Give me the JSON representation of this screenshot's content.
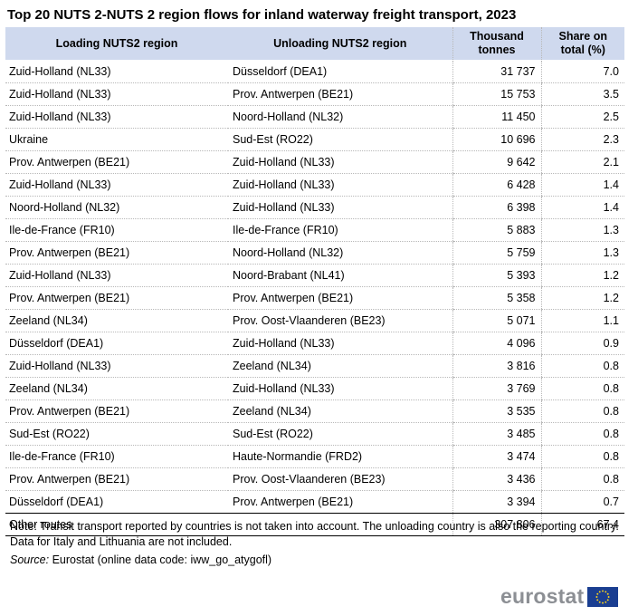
{
  "title": "Top 20 NUTS 2-NUTS 2 region flows for inland waterway freight transport, 2023",
  "table": {
    "headers": {
      "loading": "Loading NUTS2 region",
      "unloading": "Unloading NUTS2 region",
      "tonnes_line1": "Thousand",
      "tonnes_line2": "tonnes",
      "share_line1": "Share on",
      "share_line2": "total (%)"
    },
    "rows": [
      {
        "loading": "Zuid-Holland (NL33)",
        "unloading": "Düsseldorf (DEA1)",
        "tonnes": "31 737",
        "share": "7.0"
      },
      {
        "loading": "Zuid-Holland (NL33)",
        "unloading": "Prov. Antwerpen (BE21)",
        "tonnes": "15 753",
        "share": "3.5"
      },
      {
        "loading": "Zuid-Holland (NL33)",
        "unloading": "Noord-Holland (NL32)",
        "tonnes": "11 450",
        "share": "2.5"
      },
      {
        "loading": "Ukraine",
        "unloading": "Sud-Est (RO22)",
        "tonnes": "10 696",
        "share": "2.3"
      },
      {
        "loading": "Prov. Antwerpen (BE21)",
        "unloading": "Zuid-Holland (NL33)",
        "tonnes": "9 642",
        "share": "2.1"
      },
      {
        "loading": "Zuid-Holland (NL33)",
        "unloading": "Zuid-Holland (NL33)",
        "tonnes": "6 428",
        "share": "1.4"
      },
      {
        "loading": "Noord-Holland (NL32)",
        "unloading": "Zuid-Holland (NL33)",
        "tonnes": "6 398",
        "share": "1.4"
      },
      {
        "loading": "Ile-de-France (FR10)",
        "unloading": "Ile-de-France (FR10)",
        "tonnes": "5 883",
        "share": "1.3"
      },
      {
        "loading": "Prov. Antwerpen (BE21)",
        "unloading": "Noord-Holland (NL32)",
        "tonnes": "5 759",
        "share": "1.3"
      },
      {
        "loading": "Zuid-Holland (NL33)",
        "unloading": "Noord-Brabant (NL41)",
        "tonnes": "5 393",
        "share": "1.2"
      },
      {
        "loading": "Prov. Antwerpen (BE21)",
        "unloading": "Prov. Antwerpen (BE21)",
        "tonnes": "5 358",
        "share": "1.2"
      },
      {
        "loading": "Zeeland (NL34)",
        "unloading": "Prov. Oost-Vlaanderen (BE23)",
        "tonnes": "5 071",
        "share": "1.1"
      },
      {
        "loading": "Düsseldorf (DEA1)",
        "unloading": "Zuid-Holland (NL33)",
        "tonnes": "4 096",
        "share": "0.9"
      },
      {
        "loading": "Zuid-Holland (NL33)",
        "unloading": "Zeeland (NL34)",
        "tonnes": "3 816",
        "share": "0.8"
      },
      {
        "loading": "Zeeland (NL34)",
        "unloading": "Zuid-Holland (NL33)",
        "tonnes": "3 769",
        "share": "0.8"
      },
      {
        "loading": "Prov. Antwerpen (BE21)",
        "unloading": "Zeeland (NL34)",
        "tonnes": "3 535",
        "share": "0.8"
      },
      {
        "loading": "Sud-Est (RO22)",
        "unloading": "Sud-Est (RO22)",
        "tonnes": "3 485",
        "share": "0.8"
      },
      {
        "loading": "Ile-de-France (FR10)",
        "unloading": "Haute-Normandie  (FRD2)",
        "tonnes": "3 474",
        "share": "0.8"
      },
      {
        "loading": "Prov. Antwerpen (BE21)",
        "unloading": "Prov. Oost-Vlaanderen (BE23)",
        "tonnes": "3 436",
        "share": "0.8"
      },
      {
        "loading": "Düsseldorf (DEA1)",
        "unloading": "Prov. Antwerpen (BE21)",
        "tonnes": "3 394",
        "share": "0.7"
      }
    ],
    "other": {
      "label": "Other routes",
      "tonnes": "307 806",
      "share": "67.4"
    }
  },
  "note": "Note: Transit transport reported by countries is not taken into account. The unloading country is also the reporting country. Data for Italy and Lithuania are not included.",
  "source": {
    "label": "Source:",
    "text": "Eurostat (online data code: iww_go_atygofl)"
  },
  "logo": {
    "text": "eurostat",
    "flag_icon": "eu-flag-icon"
  },
  "colors": {
    "header_bg": "#cfd9ee",
    "logo_text": "#8c8f94",
    "flag_blue": "#1a3e91",
    "flag_stars": "#ffd617"
  }
}
